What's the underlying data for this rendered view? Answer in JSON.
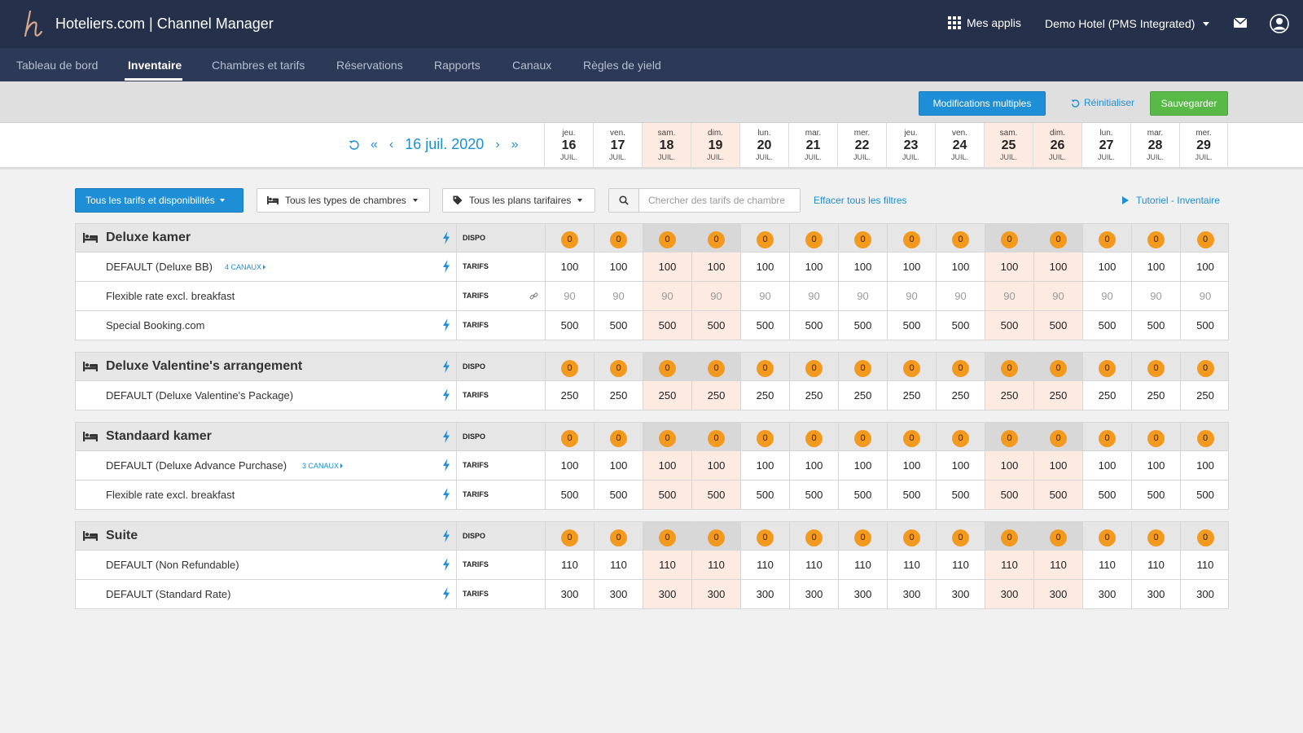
{
  "header": {
    "app_title": "Hoteliers.com | Channel Manager",
    "apps_label": "Mes applis",
    "hotel_label": "Demo Hotel (PMS Integrated)"
  },
  "nav": [
    "Tableau de bord",
    "Inventaire",
    "Chambres et tarifs",
    "Réservations",
    "Rapports",
    "Canaux",
    "Règles de yield"
  ],
  "nav_active": "Inventaire",
  "toolbar": {
    "multi_label": "Modifications multiples",
    "reset_label": "Réinitialiser",
    "save_label": "Sauvegarder"
  },
  "date_nav": {
    "current": "16 juil. 2020"
  },
  "days": [
    {
      "dow": "jeu.",
      "num": "16",
      "mon": "JUIL.",
      "weekend": false
    },
    {
      "dow": "ven.",
      "num": "17",
      "mon": "JUIL.",
      "weekend": false
    },
    {
      "dow": "sam.",
      "num": "18",
      "mon": "JUIL.",
      "weekend": true
    },
    {
      "dow": "dim.",
      "num": "19",
      "mon": "JUIL.",
      "weekend": true
    },
    {
      "dow": "lun.",
      "num": "20",
      "mon": "JUIL.",
      "weekend": false
    },
    {
      "dow": "mar.",
      "num": "21",
      "mon": "JUIL.",
      "weekend": false
    },
    {
      "dow": "mer.",
      "num": "22",
      "mon": "JUIL.",
      "weekend": false
    },
    {
      "dow": "jeu.",
      "num": "23",
      "mon": "JUIL.",
      "weekend": false
    },
    {
      "dow": "ven.",
      "num": "24",
      "mon": "JUIL.",
      "weekend": false
    },
    {
      "dow": "sam.",
      "num": "25",
      "mon": "JUIL.",
      "weekend": true
    },
    {
      "dow": "dim.",
      "num": "26",
      "mon": "JUIL.",
      "weekend": true
    },
    {
      "dow": "lun.",
      "num": "27",
      "mon": "JUIL.",
      "weekend": false
    },
    {
      "dow": "mar.",
      "num": "28",
      "mon": "JUIL.",
      "weekend": false
    },
    {
      "dow": "mer.",
      "num": "29",
      "mon": "JUIL.",
      "weekend": false
    }
  ],
  "filters": {
    "all_rates": "Tous les tarifs et disponibilités",
    "room_types": "Tous les types de chambres",
    "rate_plans": "Tous les plans tarifaires",
    "search_placeholder": "Chercher des tarifs de chambre",
    "clear": "Effacer tous les filtres",
    "tutorial": "Tutoriel - Inventaire"
  },
  "labels": {
    "dispo": "DISPO",
    "tarifs": "TARIFS"
  },
  "groups": [
    {
      "room": "Deluxe kamer",
      "dispo": "0",
      "rates": [
        {
          "name": "DEFAULT (Deluxe BB)",
          "canaux": "4 CANAUX",
          "value": "100",
          "bolt": true,
          "linked": false
        },
        {
          "name": "Flexible rate excl. breakfast",
          "canaux": "",
          "value": "90",
          "bolt": false,
          "linked": true
        },
        {
          "name": "Special Booking.com",
          "canaux": "",
          "value": "500",
          "bolt": true,
          "linked": false
        }
      ]
    },
    {
      "room": "Deluxe Valentine's arrangement",
      "dispo": "0",
      "rates": [
        {
          "name": "DEFAULT (Deluxe Valentine's Package)",
          "canaux": "",
          "value": "250",
          "bolt": true,
          "linked": false
        }
      ]
    },
    {
      "room": "Standaard kamer",
      "dispo": "0",
      "rates": [
        {
          "name": "DEFAULT (Deluxe Advance Purchase)",
          "canaux": "3 CANAUX",
          "value": "100",
          "bolt": true,
          "linked": false
        },
        {
          "name": "Flexible rate excl. breakfast",
          "canaux": "",
          "value": "500",
          "bolt": true,
          "linked": false
        }
      ]
    },
    {
      "room": "Suite",
      "dispo": "0",
      "rates": [
        {
          "name": "DEFAULT (Non Refundable)",
          "canaux": "",
          "value": "110",
          "bolt": true,
          "linked": false
        },
        {
          "name": "DEFAULT (Standard Rate)",
          "canaux": "",
          "value": "300",
          "bolt": true,
          "linked": false
        }
      ]
    }
  ],
  "colors": {
    "header_bg": "#25314b",
    "nav_bg": "#2d3a57",
    "accent_blue": "#1e8fd6",
    "save_green": "#58b947",
    "dispo_orange": "#f39a1e",
    "weekend_bg": "#fdeae0"
  },
  "icons": {
    "logo": "hoteliers-h-logo",
    "apps": "grid-icon",
    "mail": "envelope-icon",
    "user": "user-circle-icon",
    "bed": "bed-icon",
    "bolt": "lightning-icon",
    "link": "link-icon",
    "search": "search-icon",
    "tag": "tag-icon",
    "reset": "undo-icon"
  }
}
